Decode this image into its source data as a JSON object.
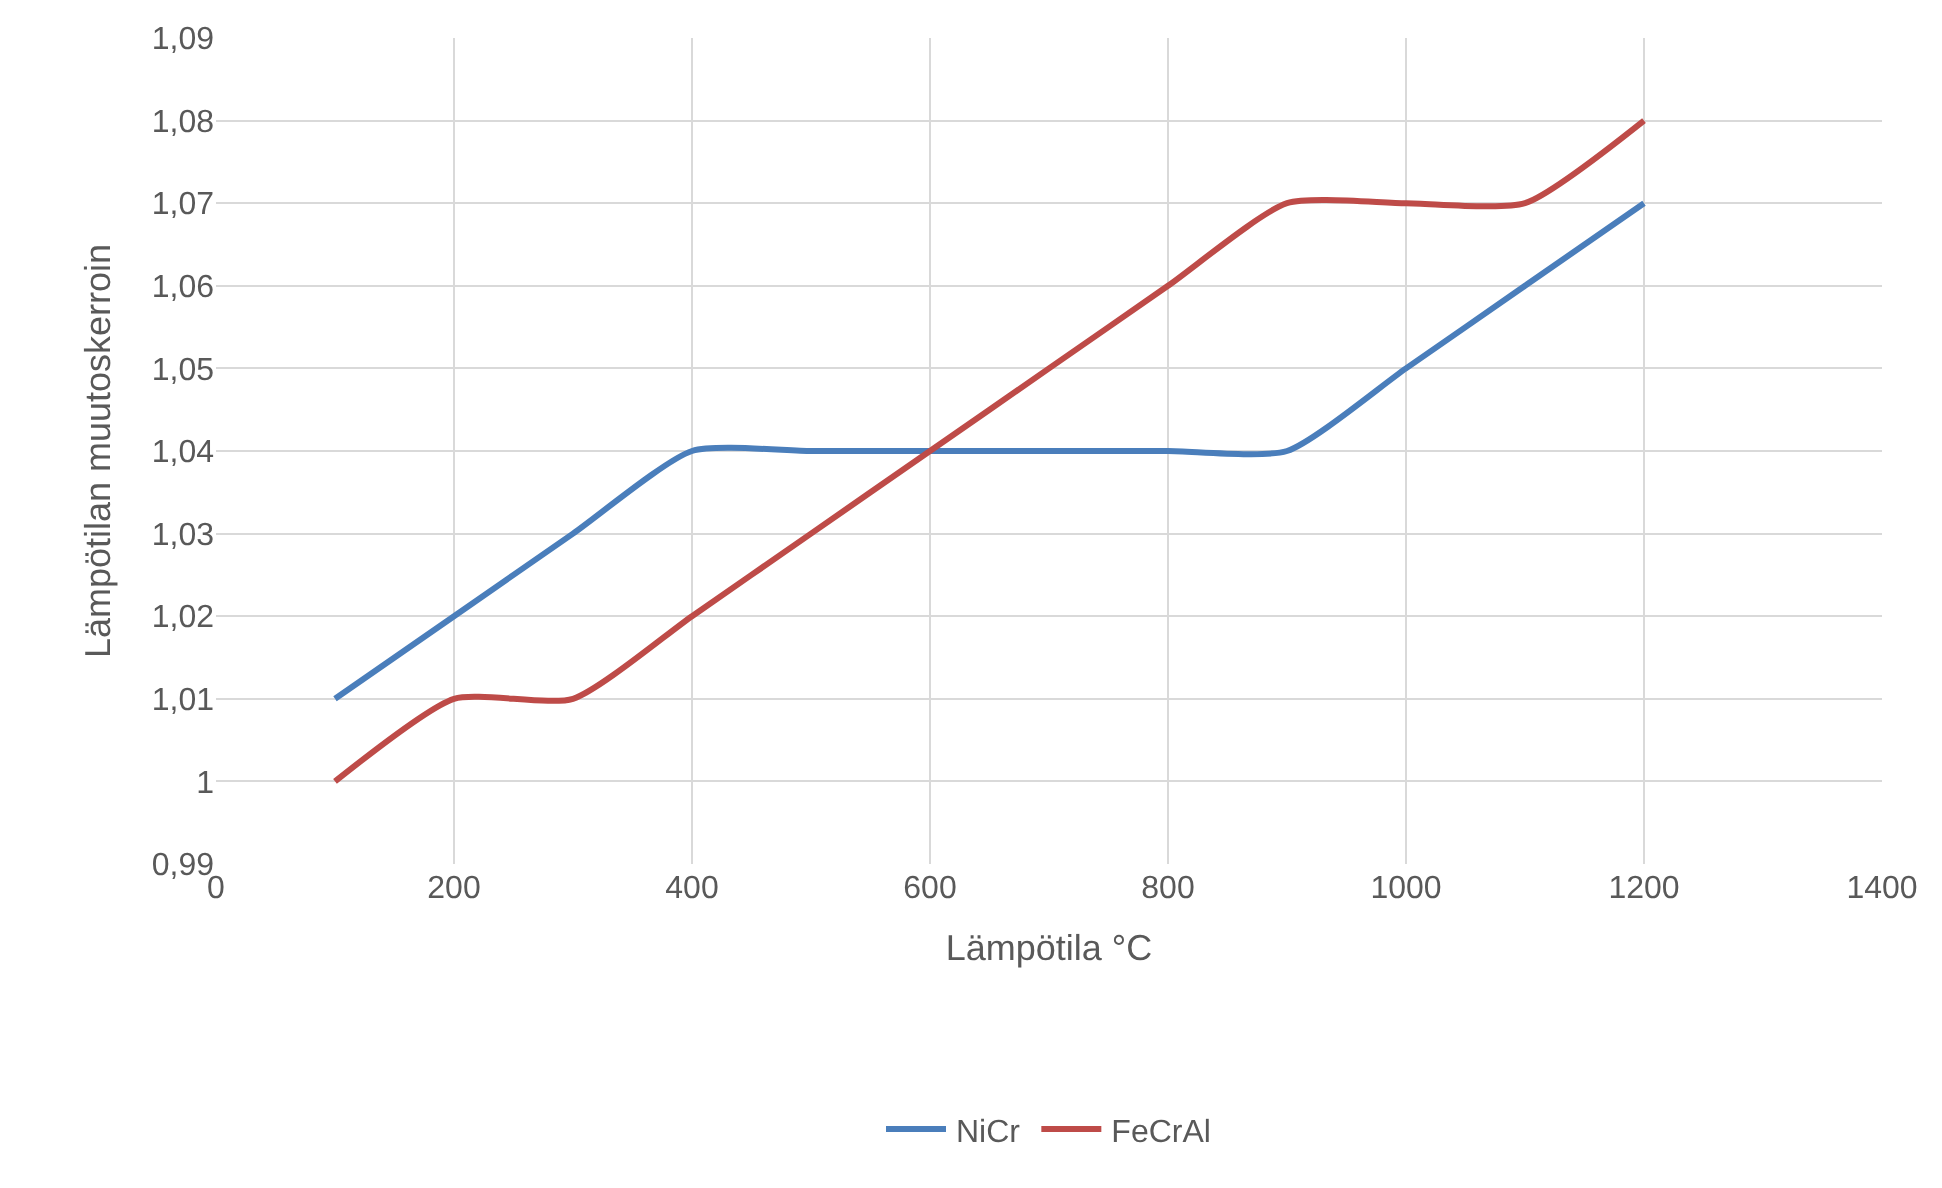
{
  "chart_data": {
    "type": "line",
    "xlabel": "Lämpötila °C",
    "ylabel": "Lämpötilan muutoskerroin",
    "x": [
      100,
      200,
      300,
      400,
      500,
      600,
      700,
      800,
      900,
      1000,
      1100,
      1200
    ],
    "series": [
      {
        "name": "NiCr",
        "color": "#4a7ebb",
        "values": [
          1.01,
          1.02,
          1.03,
          1.04,
          1.04,
          1.04,
          1.04,
          1.04,
          1.04,
          1.05,
          1.06,
          1.07
        ]
      },
      {
        "name": "FeCrAl",
        "color": "#be4b48",
        "values": [
          1.0,
          1.01,
          1.01,
          1.02,
          1.03,
          1.04,
          1.05,
          1.06,
          1.07,
          1.07,
          1.07,
          1.08
        ]
      }
    ],
    "xlim": [
      0,
      1400
    ],
    "xticks": [
      0,
      200,
      400,
      600,
      800,
      1000,
      1200,
      1400
    ],
    "ylim": [
      0.99,
      1.09
    ],
    "yticks": [
      {
        "value": 0.99,
        "label": "0,99"
      },
      {
        "value": 1.0,
        "label": "1"
      },
      {
        "value": 1.01,
        "label": "1,01"
      },
      {
        "value": 1.02,
        "label": "1,02"
      },
      {
        "value": 1.03,
        "label": "1,03"
      },
      {
        "value": 1.04,
        "label": "1,04"
      },
      {
        "value": 1.05,
        "label": "1,05"
      },
      {
        "value": 1.06,
        "label": "1,06"
      },
      {
        "value": 1.07,
        "label": "1,07"
      },
      {
        "value": 1.08,
        "label": "1,08"
      },
      {
        "value": 1.09,
        "label": "1,09"
      }
    ],
    "grid": true,
    "legend": "bottom",
    "marker": "none",
    "line_style": "solid"
  }
}
